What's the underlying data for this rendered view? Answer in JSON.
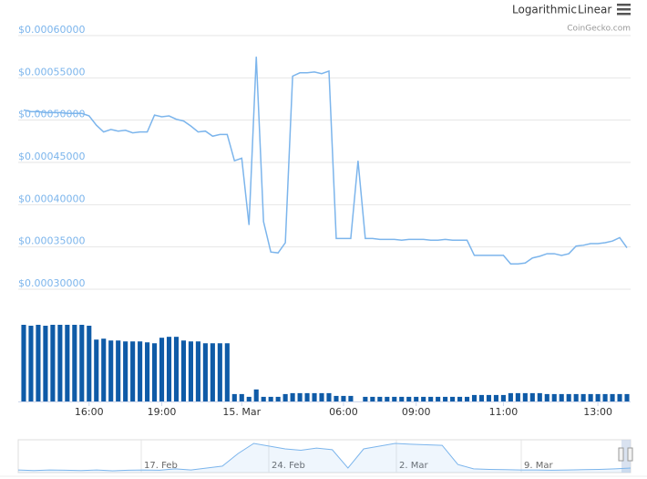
{
  "toolbar": {
    "buttons": [
      "Logarithmic",
      "Linear"
    ],
    "credit": "CoinGecko.com"
  },
  "chart_data": {
    "type": "line",
    "categories": [
      null,
      null,
      null,
      null,
      null,
      null,
      null,
      null,
      null,
      "16:00",
      null,
      null,
      null,
      null,
      null,
      null,
      null,
      null,
      null,
      "19:00",
      null,
      null,
      null,
      null,
      null,
      null,
      null,
      null,
      null,
      null,
      "15. Mar",
      null,
      null,
      null,
      null,
      null,
      null,
      null,
      null,
      null,
      null,
      null,
      null,
      null,
      "06:00",
      null,
      null,
      null,
      null,
      null,
      null,
      null,
      null,
      null,
      "09:00",
      null,
      null,
      null,
      null,
      null,
      null,
      null,
      null,
      null,
      null,
      null,
      "11:00",
      null,
      null,
      null,
      null,
      null,
      null,
      null,
      null,
      null,
      null,
      null,
      null,
      "13:00",
      null,
      null,
      null,
      null
    ],
    "series": [
      {
        "name": "price",
        "color": "#7cb5ec",
        "values": [
          0.000512,
          0.00051,
          0.00051,
          0.000509,
          0.000509,
          0.000509,
          0.000508,
          0.000508,
          0.000508,
          0.000505,
          0.000494,
          0.000486,
          0.000489,
          0.000487,
          0.000488,
          0.000485,
          0.000486,
          0.000486,
          0.000506,
          0.000504,
          0.000505,
          0.000501,
          0.000499,
          0.000493,
          0.000486,
          0.000487,
          0.000481,
          0.000483,
          0.000483,
          0.000452,
          0.000455,
          0.000376,
          0.000575,
          0.00038,
          0.000344,
          0.000343,
          0.000355,
          0.000552,
          0.000556,
          0.000556,
          0.000557,
          0.000555,
          0.000558,
          0.00036,
          0.00036,
          0.00036,
          0.000452,
          0.00036,
          0.00036,
          0.000359,
          0.000359,
          0.000359,
          0.000358,
          0.000359,
          0.000359,
          0.000359,
          0.000358,
          0.000358,
          0.000359,
          0.000358,
          0.000358,
          0.000358,
          0.00034,
          0.00034,
          0.00034,
          0.00034,
          0.00034,
          0.00033,
          0.00033,
          0.000331,
          0.000337,
          0.000339,
          0.000342,
          0.000342,
          0.00034,
          0.000342,
          0.000351,
          0.000352,
          0.000354,
          0.000354,
          0.000355,
          0.000357,
          0.000361,
          0.000349
        ]
      },
      {
        "name": "volume",
        "color": "#0f5ba7",
        "values": [
          83,
          82,
          83,
          82,
          83,
          83,
          83,
          83,
          83,
          82,
          67,
          68,
          66,
          66,
          65,
          65,
          65,
          64,
          63,
          69,
          70,
          70,
          66,
          65,
          65,
          63,
          63,
          63,
          63,
          8,
          8,
          5,
          13,
          5,
          5,
          5,
          8,
          9,
          9,
          9,
          9,
          9,
          9,
          6,
          6,
          6,
          0,
          5,
          5,
          5,
          5,
          5,
          5,
          5,
          5,
          5,
          5,
          5,
          5,
          5,
          5,
          5,
          7,
          7,
          7,
          7,
          7,
          9,
          9,
          9,
          9,
          9,
          8,
          8,
          8,
          8,
          8,
          8,
          8,
          8,
          8,
          8,
          8,
          8
        ]
      }
    ],
    "ylim": [
      0.0003,
      0.0006
    ],
    "yticks": [
      {
        "value": 0.0003,
        "label": "$0.00030000"
      },
      {
        "value": 0.00035,
        "label": "$0.00035000"
      },
      {
        "value": 0.0004,
        "label": "$0.00040000"
      },
      {
        "value": 0.00045,
        "label": "$0.00045000"
      },
      {
        "value": 0.0005,
        "label": "$0.00050000"
      },
      {
        "value": 0.00055,
        "label": "$0.00055000"
      },
      {
        "value": 0.0006,
        "label": "$0.00060000"
      }
    ],
    "grid": true,
    "navigator": {
      "labels": [
        "17. Feb",
        "24. Feb",
        "2. Mar",
        "9. Mar"
      ],
      "color": "#7cb5ec",
      "values": [
        0.000318,
        0.000316,
        0.000318,
        0.000317,
        0.000316,
        0.000318,
        0.000315,
        0.000317,
        0.000318,
        0.000317,
        0.000322,
        0.000318,
        0.000325,
        0.000332,
        0.000378,
        0.000415,
        0.000405,
        0.000395,
        0.00039,
        0.000398,
        0.000392,
        0.000325,
        0.000395,
        0.000405,
        0.000415,
        0.000412,
        0.00041,
        0.000408,
        0.000338,
        0.000322,
        0.00032,
        0.000319,
        0.000318,
        0.000318,
        0.000317,
        0.000318,
        0.000319,
        0.00032,
        0.000322,
        0.000325
      ]
    }
  }
}
